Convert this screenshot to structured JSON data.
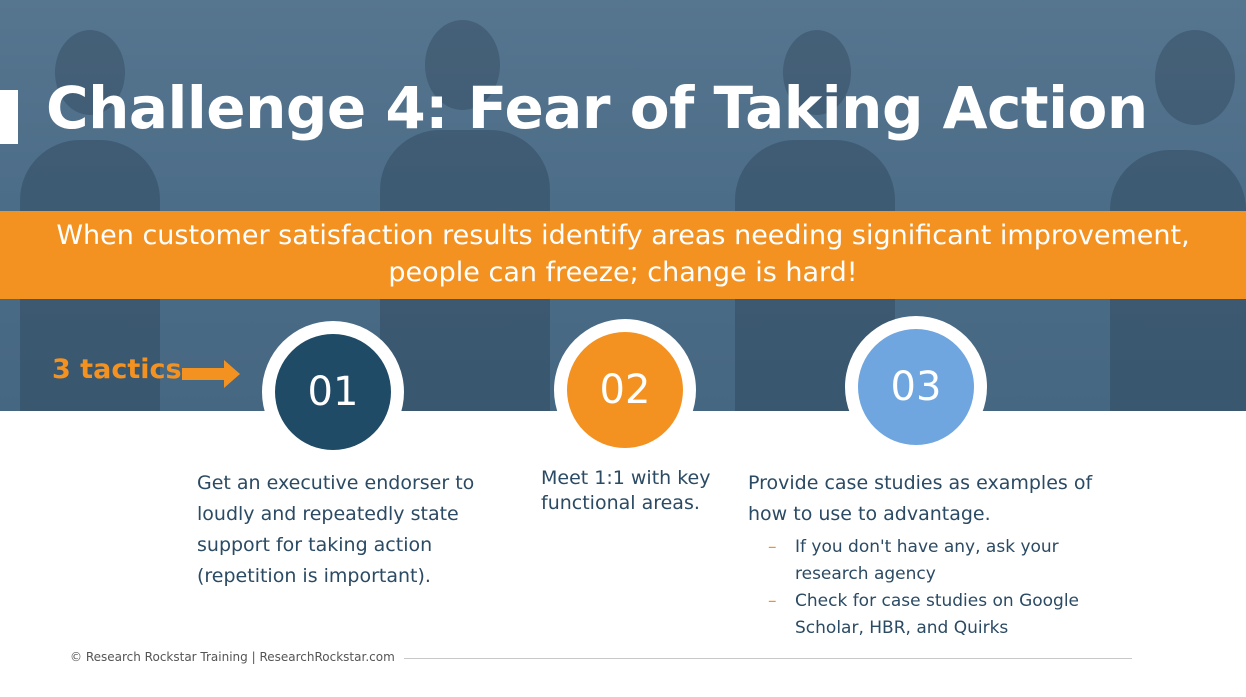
{
  "slide": {
    "title": "Challenge 4: Fear of Taking Action",
    "banner_lines": [
      "When customer satisfaction results identify areas needing significant improvement,",
      "people can freeze; change is hard!"
    ],
    "tactics_label": "3 tactics",
    "tactics": [
      {
        "number": "01",
        "color": "#1f4b66",
        "text": "Get an executive endorser to loudly and repeatedly state support for taking action (repetition is important)."
      },
      {
        "number": "02",
        "color": "#f39221",
        "text": "Meet 1:1 with key functional areas."
      },
      {
        "number": "03",
        "color": "#6fa6e0",
        "text": "Provide case studies as examples of how to use to advantage.",
        "sub_items": [
          "If you don't have any, ask your research agency",
          "Check for case studies on Google Scholar, HBR, and Quirks"
        ]
      }
    ],
    "footer": "© Research Rockstar Training | ResearchRockstar.com"
  },
  "colors": {
    "accent": "#f39221",
    "hero_tint": "#4b6c87",
    "text_dark": "#2b4a63"
  },
  "icons": [
    "right-arrow-icon"
  ]
}
